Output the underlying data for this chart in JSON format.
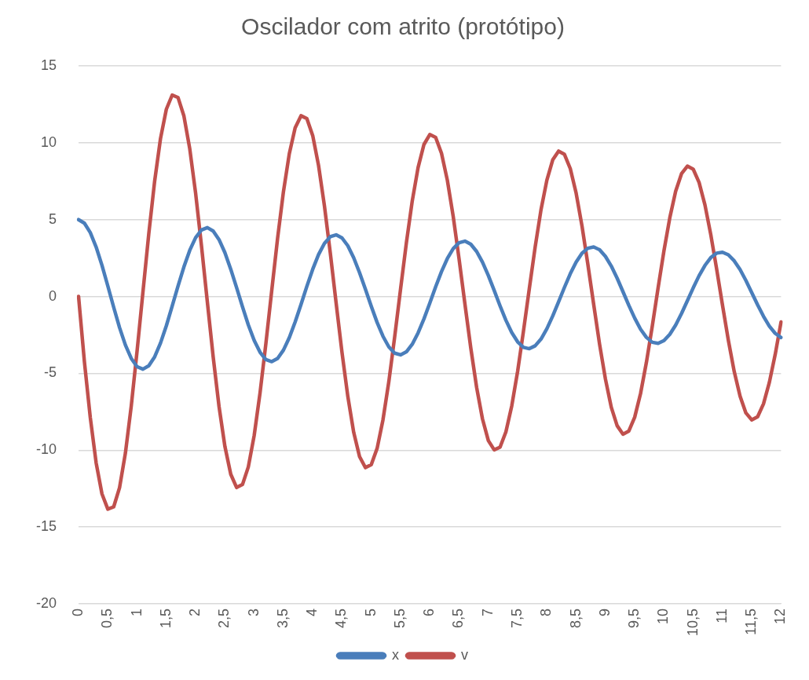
{
  "chart_data": {
    "type": "line",
    "title": "Oscilador com atrito (protótipo)",
    "categories": [
      "0",
      null,
      null,
      null,
      null,
      "0,5",
      null,
      null,
      null,
      null,
      "1",
      null,
      null,
      null,
      null,
      "1,5",
      null,
      null,
      null,
      null,
      "2",
      null,
      null,
      null,
      null,
      "2,5",
      null,
      null,
      null,
      null,
      "3",
      null,
      null,
      null,
      null,
      "3,5",
      null,
      null,
      null,
      null,
      "4",
      null,
      null,
      null,
      null,
      "4,5",
      null,
      null,
      null,
      null,
      "5",
      null,
      null,
      null,
      null,
      "5,5",
      null,
      null,
      null,
      null,
      "6",
      null,
      null,
      null,
      null,
      "6,5",
      null,
      null,
      null,
      null,
      "7",
      null,
      null,
      null,
      null,
      "7,5",
      null,
      null,
      null,
      null,
      "8",
      null,
      null,
      null,
      null,
      "8,5",
      null,
      null,
      null,
      null,
      "9",
      null,
      null,
      null,
      null,
      "9,5",
      null,
      null,
      null,
      null,
      "10",
      null,
      null,
      null,
      null,
      "10,5",
      null,
      null,
      null,
      null,
      "11",
      null,
      null,
      null,
      null,
      "11,5",
      null,
      null,
      null,
      null,
      "12"
    ],
    "series": [
      {
        "name": "x",
        "color": "#4a7ebb",
        "values": [
          5.0,
          4.77,
          4.16,
          3.22,
          2.03,
          0.68,
          -0.7,
          -2.02,
          -3.16,
          -4.03,
          -4.57,
          -4.73,
          -4.51,
          -3.93,
          -3.03,
          -1.9,
          -0.62,
          0.69,
          1.93,
          3.01,
          3.83,
          4.33,
          4.48,
          4.26,
          3.7,
          2.85,
          1.77,
          0.57,
          -0.67,
          -1.85,
          -2.86,
          -3.63,
          -4.11,
          -4.24,
          -4.03,
          -3.49,
          -2.68,
          -1.66,
          -0.52,
          0.66,
          1.77,
          2.73,
          3.45,
          3.89,
          4.01,
          3.81,
          3.3,
          2.52,
          1.55,
          0.47,
          -0.64,
          -1.69,
          -2.59,
          -3.28,
          -3.69,
          -3.8,
          -3.6,
          -3.11,
          -2.37,
          -1.46,
          -0.43,
          0.63,
          1.62,
          2.47,
          3.11,
          3.5,
          3.6,
          3.4,
          2.93,
          2.23,
          1.36,
          0.39,
          -0.61,
          -1.55,
          -2.35,
          -2.95,
          -3.31,
          -3.4,
          -3.21,
          -2.77,
          -2.1,
          -1.27,
          -0.35,
          0.59,
          1.48,
          2.24,
          2.81,
          3.14,
          3.22,
          3.04,
          2.61,
          1.98,
          1.19,
          0.31,
          -0.58,
          -1.41,
          -2.13,
          -2.66,
          -2.98,
          -3.05,
          -2.87,
          -2.46,
          -1.86,
          -1.11,
          -0.28,
          0.56,
          1.35,
          2.02,
          2.53,
          2.82,
          2.88,
          2.71,
          2.32,
          1.75,
          1.04,
          0.25,
          -0.55,
          -1.29,
          -1.93,
          -2.4,
          -2.67
        ]
      },
      {
        "name": "v",
        "color": "#c0504d",
        "values": [
          0,
          -4.25,
          -7.87,
          -10.82,
          -12.85,
          -13.84,
          -13.69,
          -12.45,
          -10.2,
          -7.14,
          -3.54,
          0.3,
          4.09,
          7.51,
          10.28,
          12.19,
          13.11,
          12.94,
          11.74,
          9.6,
          6.71,
          3.29,
          -0.35,
          -3.94,
          -7.17,
          -9.76,
          -11.57,
          -12.43,
          -12.24,
          -11.09,
          -9.05,
          -6.28,
          -3.06,
          0.39,
          3.79,
          6.82,
          9.29,
          10.98,
          11.76,
          11.58,
          10.47,
          8.52,
          5.9,
          2.84,
          -0.43,
          -3.64,
          -6.51,
          -8.84,
          -10.42,
          -11.14,
          -10.95,
          -9.89,
          -8.03,
          -5.55,
          -2.63,
          0.46,
          3.49,
          6.21,
          8.39,
          9.89,
          10.54,
          10.35,
          9.32,
          7.56,
          5.21,
          2.44,
          -0.49,
          -3.35,
          -5.92,
          -7.97,
          -9.38,
          -9.98,
          -9.81,
          -8.81,
          -7.12,
          -4.88,
          -2.26,
          0.51,
          3.22,
          5.65,
          7.57,
          8.89,
          9.46,
          9.25,
          8.32,
          6.72,
          4.58,
          2.09,
          -0.53,
          -3.1,
          -5.37,
          -7.21,
          -8.41,
          -8.96,
          -8.76,
          -7.86,
          -6.32,
          -4.29,
          -1.94,
          0.56,
          2.97,
          5.12,
          6.85,
          7.99,
          8.48,
          8.28,
          7.42,
          5.96,
          4.02,
          1.79,
          -0.56,
          -2.85,
          -4.88,
          -6.49,
          -7.58,
          -8.03,
          -7.83,
          -6.99,
          -5.6,
          -3.78,
          -1.66
        ]
      }
    ],
    "ylim": [
      -20,
      15
    ],
    "yticks": [
      -20,
      -15,
      -10,
      -5,
      0,
      5,
      10,
      15
    ],
    "grid": "y",
    "legend": "bottom",
    "marker": "none",
    "line_style": "solid"
  }
}
